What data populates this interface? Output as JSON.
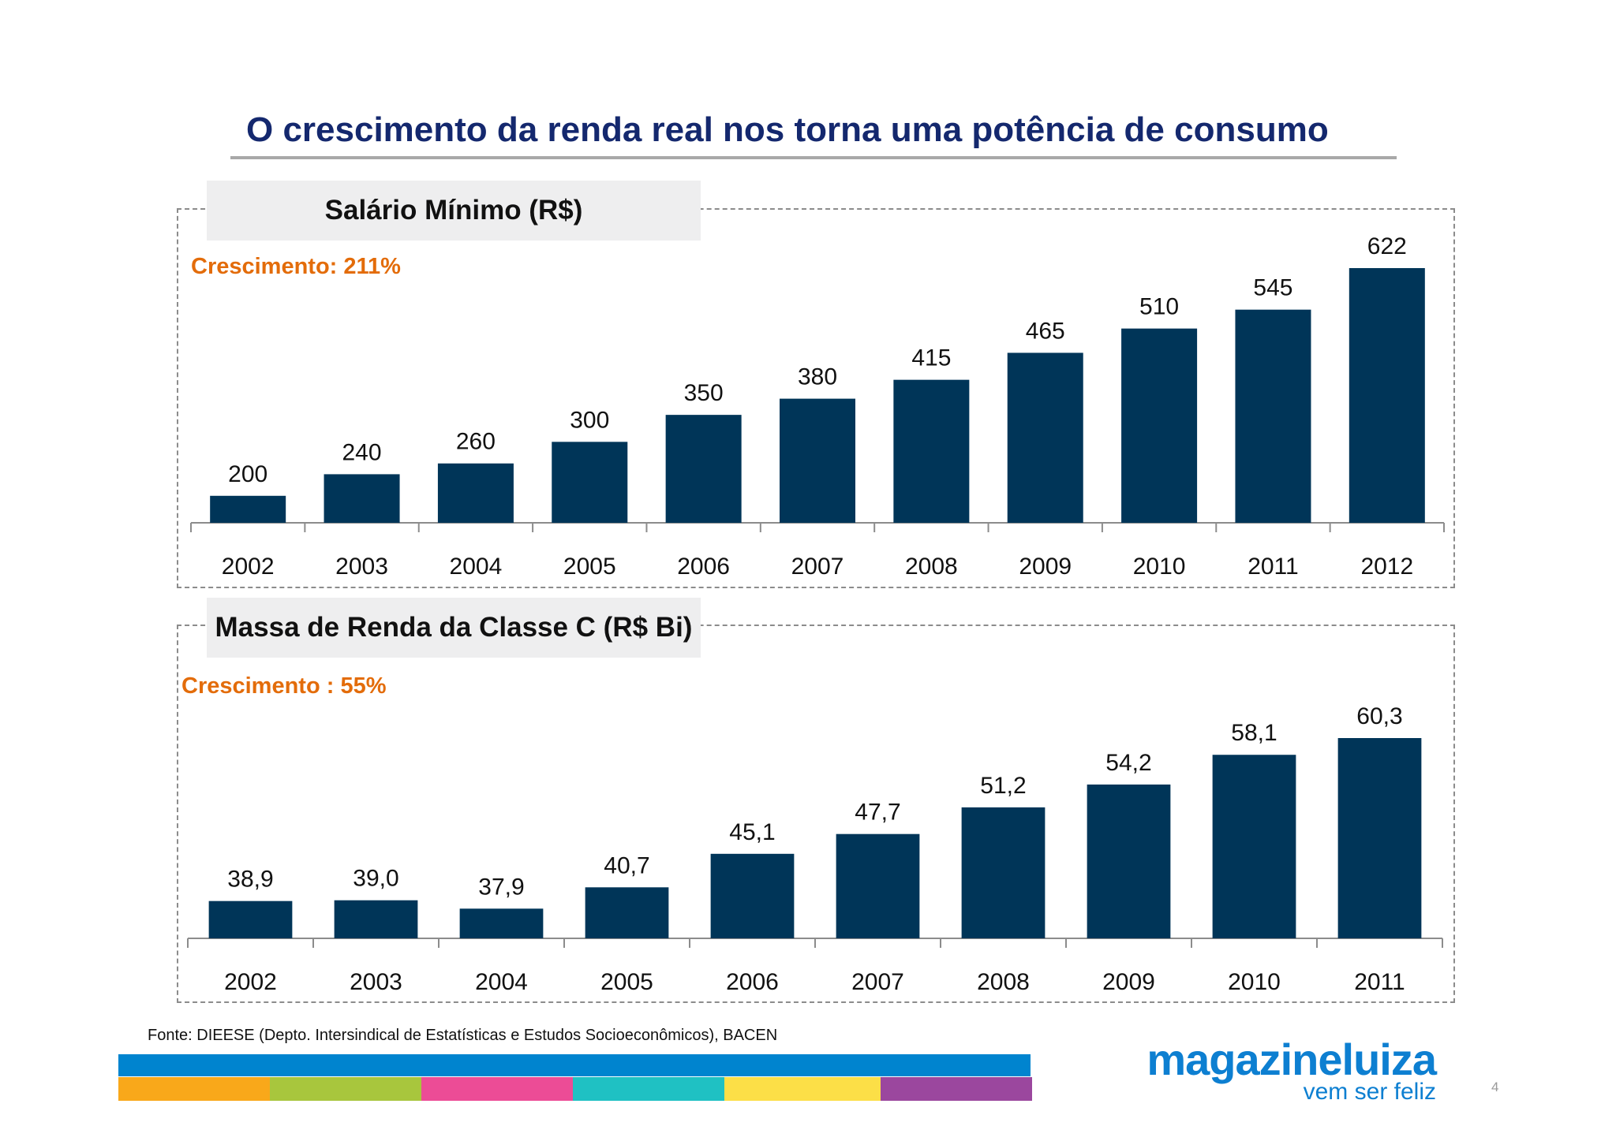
{
  "slide": {
    "title": "O crescimento da renda real nos torna uma potência de consumo",
    "source": "Fonte: DIEESE (Depto. Intersindical de Estatísticas e Estudos Socioeconômicos), BACEN",
    "page_number": "4"
  },
  "logo": {
    "name": "magazineluiza",
    "tagline": "vem ser feliz",
    "color": "#0d7fd1"
  },
  "colors": {
    "bar": "#003558",
    "accent": "#e36c0a",
    "title": "#14286e",
    "footer_band": "#0084cf",
    "footer_stripes": [
      "#f9a81a",
      "#a8c63d",
      "#ec4c96",
      "#1fc1c3",
      "#fcdf47",
      "#9b479e"
    ]
  },
  "chart_data": [
    {
      "type": "bar",
      "title": "Salário Mínimo (R$)",
      "annotation": "Crescimento: 211%",
      "categories": [
        "2002",
        "2003",
        "2004",
        "2005",
        "2006",
        "2007",
        "2008",
        "2009",
        "2010",
        "2011",
        "2012"
      ],
      "values": [
        200,
        240,
        260,
        300,
        350,
        380,
        415,
        465,
        510,
        545,
        622
      ],
      "value_labels": [
        "200",
        "240",
        "260",
        "300",
        "350",
        "380",
        "415",
        "465",
        "510",
        "545",
        "622"
      ],
      "ylim": [
        150,
        622
      ],
      "grid": false,
      "legend": "none"
    },
    {
      "type": "bar",
      "title": "Massa de Renda da Classe C (R$ Bi)",
      "annotation": "Crescimento : 55%",
      "categories": [
        "2002",
        "2003",
        "2004",
        "2005",
        "2006",
        "2007",
        "2008",
        "2009",
        "2010",
        "2011"
      ],
      "values": [
        38.9,
        39.0,
        37.9,
        40.7,
        45.1,
        47.7,
        51.2,
        54.2,
        58.1,
        60.3
      ],
      "value_labels": [
        "38,9",
        "39,0",
        "37,9",
        "40,7",
        "45,1",
        "47,7",
        "51,2",
        "54,2",
        "58,1",
        "60,3"
      ],
      "ylim": [
        34,
        60.3
      ],
      "grid": false,
      "legend": "none"
    }
  ]
}
